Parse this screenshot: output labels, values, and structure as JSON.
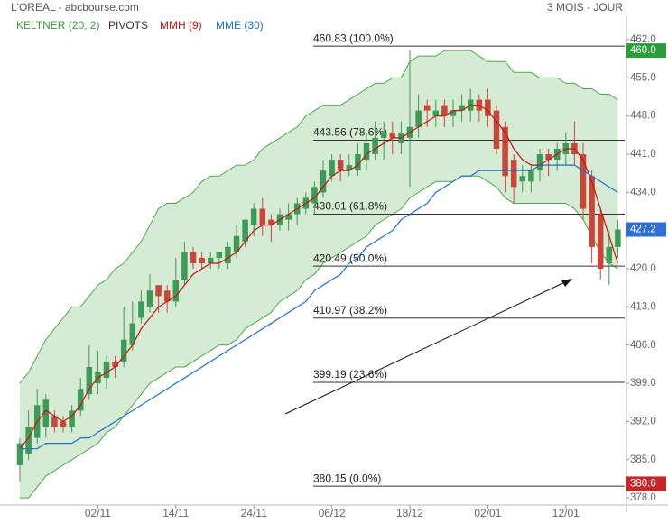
{
  "chart_data": {
    "type": "candlestick",
    "title": "L'OREAL - abcbourse.com",
    "subtitle": "3 MOIS - JOUR",
    "xlim": [
      -1,
      70
    ],
    "xticks": [
      {
        "value": 9,
        "label": "02/11"
      },
      {
        "value": 18,
        "label": "14/11"
      },
      {
        "value": 27,
        "label": "24/11"
      },
      {
        "value": 36,
        "label": "06/12"
      },
      {
        "value": 45,
        "label": "18/12"
      },
      {
        "value": 54,
        "label": "02/01"
      },
      {
        "value": 63,
        "label": "12/01"
      }
    ],
    "ylim": [
      376.7,
      466.3
    ],
    "yticks": [
      {
        "value": 462,
        "label": "462.0"
      },
      {
        "value": 455,
        "label": "455.0"
      },
      {
        "value": 448,
        "label": "448.0"
      },
      {
        "value": 441,
        "label": "441.0"
      },
      {
        "value": 434,
        "label": "434.0"
      },
      {
        "value": 427,
        "label": "427.0"
      },
      {
        "value": 420,
        "label": "420.0"
      },
      {
        "value": 413,
        "label": "413.0"
      },
      {
        "value": 406,
        "label": "406.0"
      },
      {
        "value": 399,
        "label": "399.0"
      },
      {
        "value": 392,
        "label": "392.0"
      },
      {
        "value": 385,
        "label": "385.0"
      },
      {
        "value": 378,
        "label": "378.0"
      }
    ],
    "up_color": "#3d9a57",
    "down_color": "#c9473a",
    "candles": {
      "open": [
        384,
        386,
        389,
        391,
        393,
        392,
        391,
        394,
        397,
        399,
        400,
        403,
        403,
        406,
        411,
        413,
        417,
        416,
        414,
        418,
        423,
        422,
        421,
        422,
        421,
        423,
        425,
        428,
        431,
        429,
        428,
        429,
        430,
        431,
        432,
        434,
        437,
        440,
        438,
        438,
        440,
        441,
        444,
        445,
        443,
        444,
        446,
        450,
        448,
        450,
        448,
        449,
        449,
        451,
        451,
        449,
        446,
        440,
        436,
        436,
        438,
        441,
        440,
        441,
        443,
        441,
        437,
        430,
        421,
        424
      ],
      "high": [
        389,
        394,
        398,
        397,
        394,
        393,
        395,
        400,
        406,
        405,
        404,
        404,
        413,
        414,
        416,
        419,
        417,
        417,
        422,
        425,
        424,
        423,
        423,
        423,
        425,
        428,
        428,
        432,
        433,
        430,
        431,
        432,
        433,
        434,
        436,
        440,
        441,
        441,
        441,
        443,
        445,
        447,
        447,
        447,
        447,
        460,
        452,
        451,
        451,
        451,
        451,
        452,
        453,
        452,
        453,
        450,
        447,
        441,
        439,
        439,
        442,
        442,
        443,
        445,
        447,
        443,
        438,
        431,
        427,
        429
      ],
      "low": [
        381,
        385,
        388,
        389,
        390,
        390,
        390,
        393,
        396,
        397,
        398,
        400,
        402,
        405,
        410,
        412,
        412,
        412,
        413,
        417,
        420,
        420,
        420,
        420,
        420,
        422,
        424,
        426,
        426,
        425,
        427,
        427,
        428,
        430,
        430,
        433,
        436,
        436,
        437,
        437,
        438,
        440,
        440,
        441,
        441,
        435,
        444,
        446,
        446,
        446,
        446,
        447,
        447,
        447,
        446,
        441,
        434,
        432,
        434,
        434,
        436,
        437,
        438,
        439,
        439,
        429,
        421,
        418,
        417,
        422
      ],
      "close": [
        388,
        391,
        395,
        396,
        391,
        391,
        394,
        398,
        402,
        401,
        403,
        402,
        407,
        410,
        414,
        416,
        415,
        414,
        418,
        423,
        421,
        421,
        422,
        423,
        424,
        426,
        429,
        431,
        428,
        428,
        430,
        430,
        432,
        433,
        435,
        438,
        440,
        438,
        439,
        441,
        443,
        444,
        445,
        444,
        445,
        446,
        449,
        449,
        449,
        448,
        449,
        450,
        451,
        449,
        448,
        442,
        437,
        435,
        437,
        438,
        441,
        440,
        442,
        443,
        441,
        431,
        424,
        420,
        424,
        427.2
      ]
    },
    "keltner": {
      "name": "KELTNER (20, 2)",
      "color": "#4fa84f",
      "fill": "#cfe8cb",
      "upper": [
        399,
        401,
        404,
        407,
        409,
        411,
        413,
        413,
        415,
        417,
        418,
        420,
        421,
        423,
        425,
        428,
        431,
        432,
        432,
        433,
        434,
        436,
        437,
        437,
        438,
        439,
        439,
        440,
        442,
        443,
        444,
        445,
        446,
        448,
        449,
        450,
        450,
        450,
        451,
        452,
        453,
        454,
        454,
        455,
        455,
        458,
        459,
        459,
        459,
        460,
        460,
        460,
        460,
        459,
        458,
        458,
        458,
        456,
        456,
        456,
        455,
        455,
        455,
        454,
        454,
        453,
        453,
        452,
        452,
        451
      ],
      "lower": [
        378,
        378,
        380,
        382,
        383,
        384,
        385,
        386,
        387,
        388,
        390,
        391,
        393,
        395,
        397,
        399,
        400,
        401,
        402,
        402,
        403,
        404,
        405,
        406,
        406,
        407,
        409,
        410,
        411,
        412,
        414,
        415,
        416,
        418,
        419,
        421,
        422,
        423,
        424,
        425,
        426,
        428,
        429,
        430,
        431,
        433,
        434,
        435,
        436,
        436,
        436,
        437,
        437,
        437,
        436,
        435,
        433,
        432,
        432,
        432,
        432,
        432,
        432,
        432,
        431,
        429,
        426,
        423,
        421,
        420
      ]
    },
    "pivots": {
      "name": "PIVOTS",
      "color": "#333333",
      "levels": [
        {
          "value": 460.83,
          "label": "460.83  (100.0%)"
        },
        {
          "value": 443.56,
          "label": "443.56  (78.6%)"
        },
        {
          "value": 430.01,
          "label": "430.01  (61.8%)"
        },
        {
          "value": 420.49,
          "label": "420.49  (50.0%)"
        },
        {
          "value": 410.97,
          "label": "410.97  (38.2%)"
        },
        {
          "value": 399.19,
          "label": "399.19  (23.6%)"
        },
        {
          "value": 380.15,
          "label": "380.15  (0.0%)"
        }
      ]
    },
    "series": [
      {
        "name": "MMH (9)",
        "color": "#cc1111",
        "values": [
          387,
          389,
          392,
          394,
          393,
          392,
          393,
          395,
          398,
          400,
          401,
          402,
          404,
          406,
          409,
          411,
          413,
          414,
          415,
          417,
          419,
          420,
          421,
          421,
          422,
          423,
          425,
          427,
          428,
          428,
          429,
          430,
          431,
          432,
          433,
          435,
          437,
          438,
          438,
          439,
          441,
          442,
          443,
          444,
          444,
          445,
          446,
          447,
          448,
          448,
          449,
          449,
          450,
          450,
          449,
          447,
          445,
          442,
          440,
          439,
          439,
          440,
          441,
          442,
          442,
          440,
          436,
          431,
          426,
          421
        ]
      },
      {
        "name": "MME (30)",
        "color": "#1f6fd0",
        "values": [
          387,
          387,
          387,
          388,
          388,
          388,
          388,
          389,
          389,
          390,
          391,
          392,
          393,
          394,
          395,
          396,
          397,
          398,
          399,
          400,
          401,
          402,
          403,
          404,
          405,
          406,
          407,
          408,
          409,
          410,
          411,
          412,
          413,
          414,
          416,
          417,
          418,
          419,
          421,
          422,
          424,
          425,
          426,
          427,
          429,
          430,
          431,
          432,
          434,
          435,
          436,
          437,
          437,
          438,
          438,
          438,
          438,
          438,
          438,
          438,
          439,
          439,
          439,
          439,
          439,
          438,
          437,
          436,
          435,
          434
        ]
      }
    ],
    "price_tags": [
      {
        "value": 460,
        "label": "460.0",
        "color": "#2a9d3a"
      },
      {
        "value": 427.2,
        "label": "427.2",
        "color": "#2f6fd6"
      },
      {
        "value": 380.6,
        "label": "380.6",
        "color": "#c62828"
      }
    ]
  }
}
